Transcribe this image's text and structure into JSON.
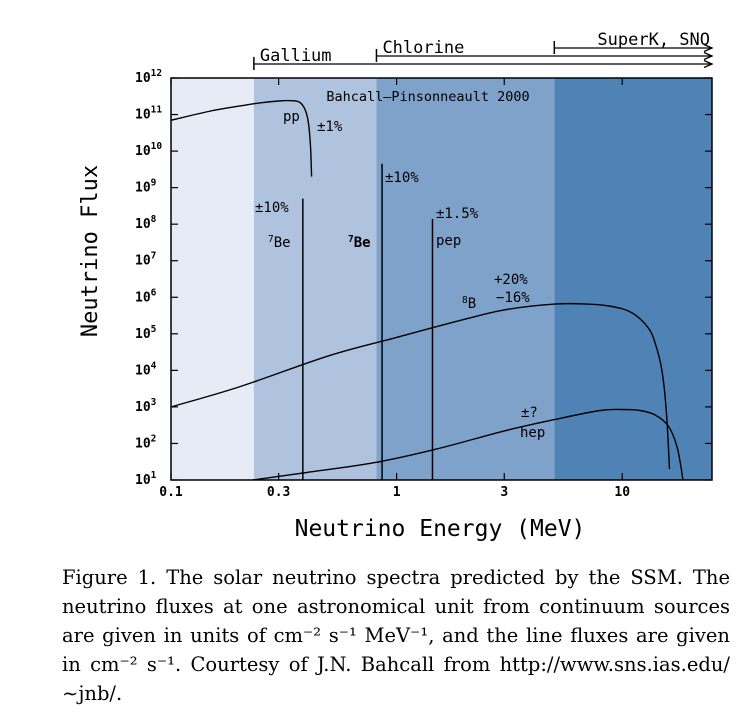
{
  "chart_data": {
    "type": "line",
    "title": "Bahcall–Pinsonneault 2000",
    "xlabel": "Neutrino Energy (MeV)",
    "ylabel": "Neutrino Flux",
    "x_scale": "log",
    "y_scale": "log",
    "xlim": [
      0.1,
      25
    ],
    "ylim": [
      10,
      1000000000000.0
    ],
    "x_ticks": [
      {
        "value": 0.1,
        "label": "0.1"
      },
      {
        "value": 0.3,
        "label": "0.3"
      },
      {
        "value": 1,
        "label": "1"
      },
      {
        "value": 3,
        "label": "3"
      },
      {
        "value": 10,
        "label": "10"
      }
    ],
    "y_ticks": [
      {
        "value": 10,
        "base": "10",
        "exp": "1"
      },
      {
        "value": 100,
        "base": "10",
        "exp": "2"
      },
      {
        "value": 1000,
        "base": "10",
        "exp": "3"
      },
      {
        "value": 10000,
        "base": "10",
        "exp": "4"
      },
      {
        "value": 100000,
        "base": "10",
        "exp": "5"
      },
      {
        "value": 1000000,
        "base": "10",
        "exp": "6"
      },
      {
        "value": 10000000,
        "base": "10",
        "exp": "7"
      },
      {
        "value": 100000000,
        "base": "10",
        "exp": "8"
      },
      {
        "value": 1000000000,
        "base": "10",
        "exp": "9"
      },
      {
        "value": 10000000000,
        "base": "10",
        "exp": "10"
      },
      {
        "value": 100000000000,
        "base": "10",
        "exp": "11"
      },
      {
        "value": 1000000000000,
        "base": "10",
        "exp": "12"
      }
    ],
    "regions": [
      {
        "from": 0.1,
        "to": 0.233,
        "color": "#e6ebf5"
      },
      {
        "from": 0.233,
        "to": 0.814,
        "color": "#afc3df"
      },
      {
        "from": 0.814,
        "to": 5,
        "color": "#7fa2cb"
      },
      {
        "from": 5,
        "to": 25,
        "color": "#4f83b6"
      }
    ],
    "thresholds": [
      {
        "name": "Gallium",
        "x": 0.233
      },
      {
        "name": "Chlorine",
        "x": 0.814
      },
      {
        "name": "SuperK, SNO",
        "x": 5
      }
    ],
    "series": [
      {
        "name": "pp",
        "kind": "continuum",
        "uncertainty": "±1%",
        "x": [
          0.1,
          0.15,
          0.2,
          0.25,
          0.3,
          0.34,
          0.37,
          0.39,
          0.405,
          0.415,
          0.42
        ],
        "y": [
          70000000000.0,
          125000000000.0,
          170000000000.0,
          210000000000.0,
          235000000000.0,
          240000000000.0,
          220000000000.0,
          150000000000.0,
          70000000000.0,
          15000000000.0,
          2000000000.0
        ]
      },
      {
        "name": "8B",
        "label_base": "B",
        "label_sup": "8",
        "kind": "continuum",
        "uncertainty": "+20% −16%",
        "x": [
          0.1,
          0.2,
          0.5,
          1,
          2,
          3,
          5,
          7,
          9,
          11,
          13,
          14,
          15,
          15.7,
          16.2
        ],
        "y": [
          1000,
          3500,
          25000,
          80000,
          250000,
          450000,
          650000,
          650000,
          560000,
          380000,
          150000,
          55000,
          10000,
          700,
          20
        ]
      },
      {
        "name": "hep",
        "kind": "continuum",
        "uncertainty": "±?",
        "x": [
          0.23,
          0.4,
          0.8,
          1.5,
          3,
          5,
          8,
          10,
          12,
          14,
          16,
          17.5,
          18.5,
          19.2
        ],
        "y": [
          10,
          16,
          30,
          70,
          220,
          450,
          800,
          850,
          800,
          600,
          300,
          80,
          12,
          1.5
        ]
      }
    ],
    "lines": [
      {
        "name": "7Be",
        "label_base": "Be",
        "label_sup": "7",
        "label_bold": false,
        "x": 0.384,
        "top": 500000000.0,
        "uncertainty": "±10%"
      },
      {
        "name": "7Be",
        "label_base": "Be",
        "label_sup": "7",
        "label_bold": true,
        "x": 0.862,
        "top": 4500000000.0,
        "uncertainty": "±10%"
      },
      {
        "name": "pep",
        "label_base": "pep",
        "label_sup": "",
        "label_bold": false,
        "x": 1.442,
        "top": 140000000.0,
        "uncertainty": "±1.5%"
      }
    ]
  },
  "caption": {
    "text": "Figure 1. The solar neutrino spectra predicted by the SSM. The neutrino fluxes at one astronomical unit from continuum sources are given in units of cm⁻² s⁻¹ MeV⁻¹, and the line fluxes are given in cm⁻² s⁻¹. Courtesy of J.N. Bahcall from http://www.sns.ias.edu/∼jnb/."
  }
}
